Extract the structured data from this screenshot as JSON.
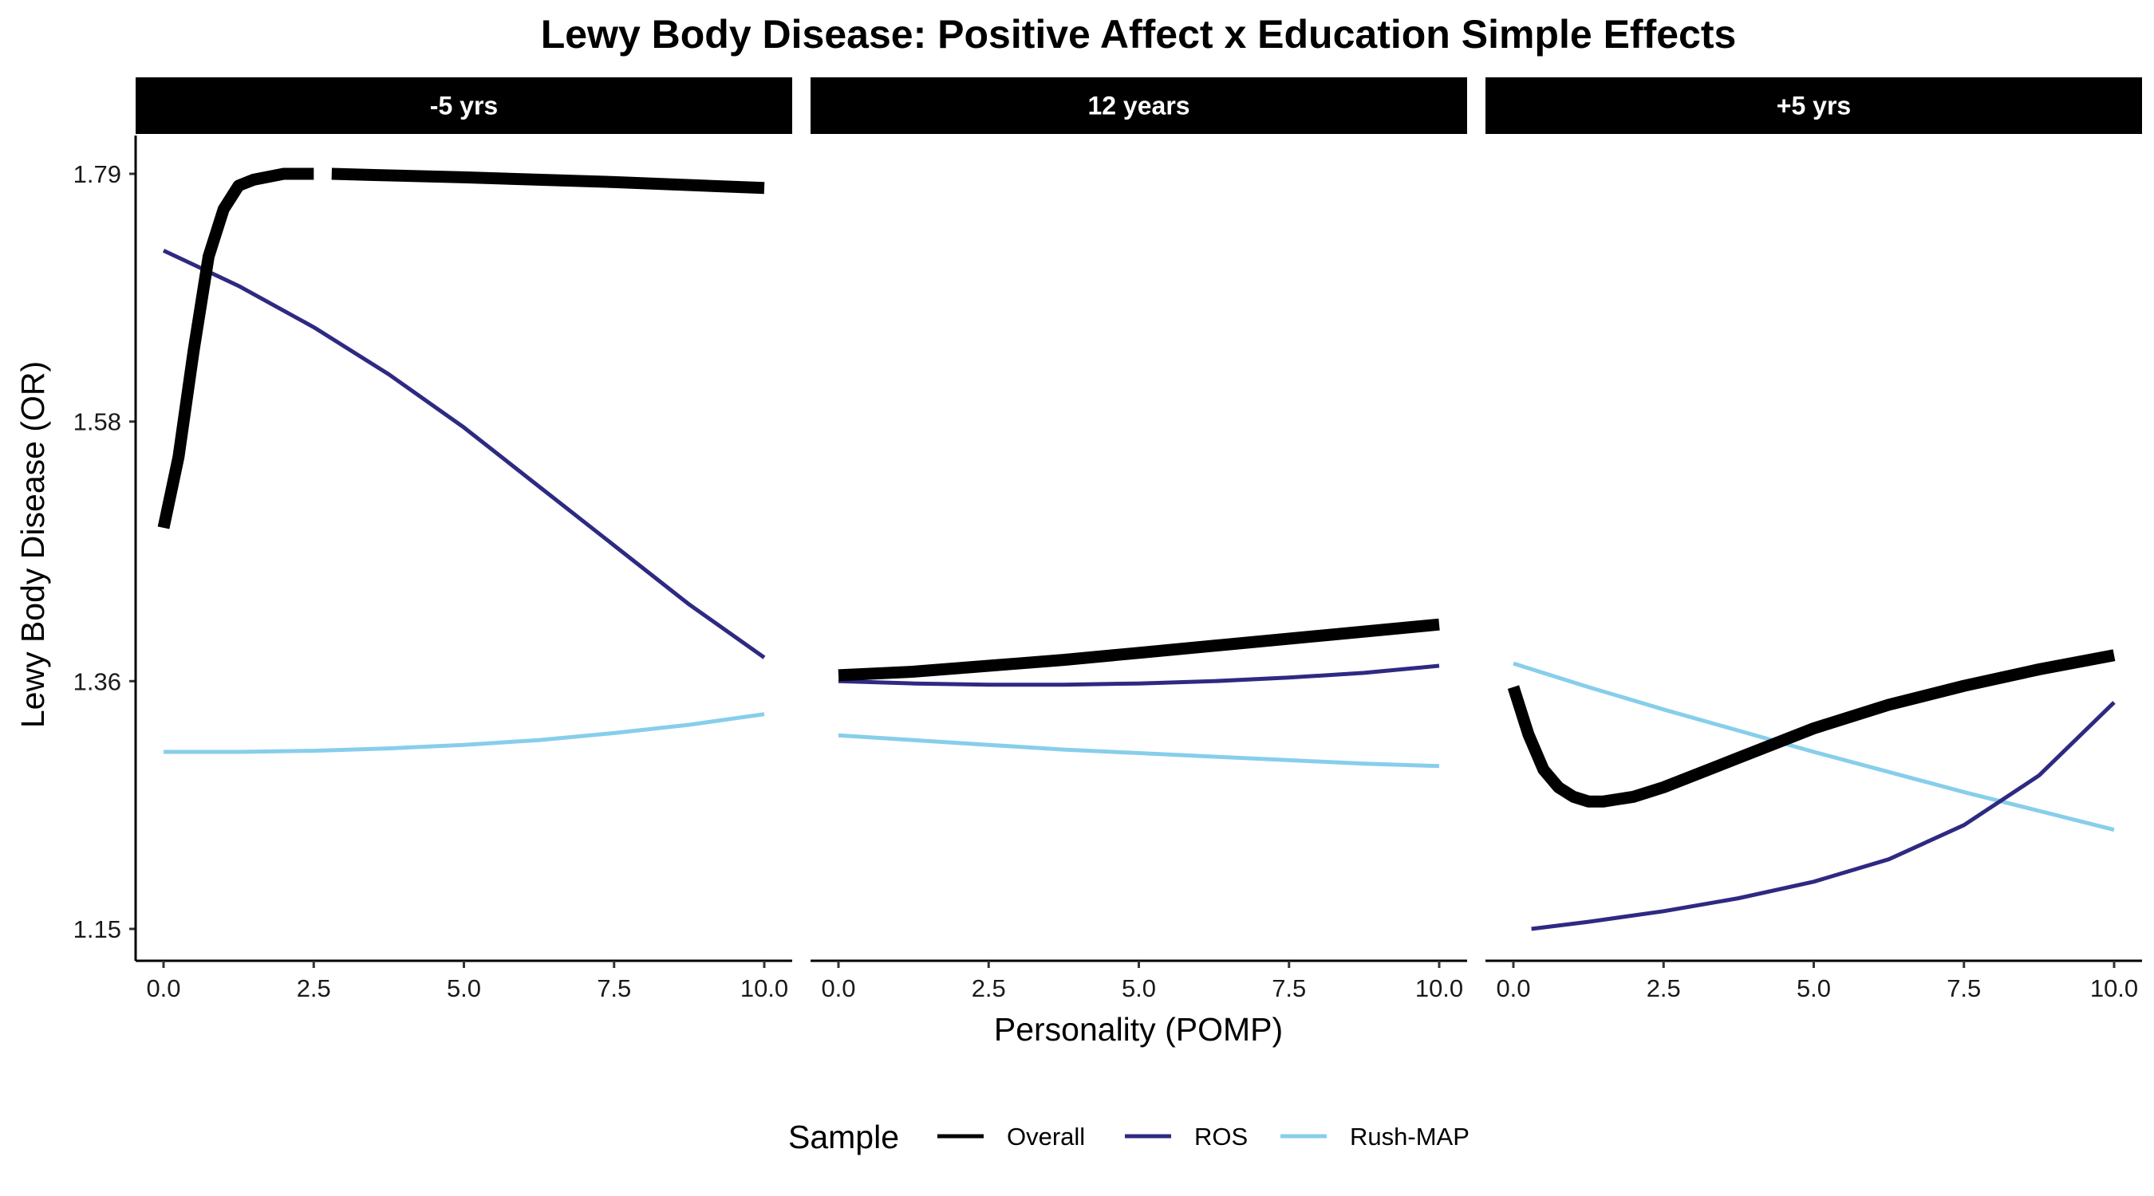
{
  "chart_data": {
    "type": "line",
    "title": "Lewy Body Disease: Positive Affect x Education Simple Effects",
    "xlabel": "Personality (POMP)",
    "ylabel": "Lewy Body Disease (OR)",
    "xlim": [
      0,
      10
    ],
    "ylim": [
      1.15,
      1.79
    ],
    "x_ticks": [
      "0.0",
      "2.5",
      "5.0",
      "7.5",
      "10.0"
    ],
    "y_ticks": [
      "1.15",
      "1.36",
      "1.58",
      "1.79"
    ],
    "legend": {
      "title": "Sample",
      "position": "bottom",
      "entries": [
        {
          "name": "Overall",
          "color": "#000000"
        },
        {
          "name": "ROS",
          "color": "#2e2a82"
        },
        {
          "name": "Rush-MAP",
          "color": "#87ceeb"
        }
      ]
    },
    "panels": [
      {
        "label": "-5 yrs",
        "series": [
          {
            "name": "Overall",
            "x": [
              0,
              0.25,
              0.5,
              0.75,
              1,
              1.25,
              1.5,
              2,
              2.5,
              2.8,
              3.5,
              5,
              7.5,
              10
            ],
            "y": [
              1.49,
              1.55,
              1.64,
              1.72,
              1.76,
              1.78,
              1.785,
              1.79,
              1.79,
              1.79,
              1.789,
              1.787,
              1.783,
              1.778
            ],
            "segments": [
              [
                0,
                8
              ],
              [
                9,
                13
              ]
            ]
          },
          {
            "name": "ROS",
            "x": [
              0,
              1.25,
              2.5,
              3.75,
              5,
              6.25,
              7.5,
              8.75,
              10
            ],
            "y": [
              1.725,
              1.695,
              1.66,
              1.62,
              1.575,
              1.525,
              1.475,
              1.425,
              1.38
            ]
          },
          {
            "name": "Rush-MAP",
            "x": [
              0,
              1.25,
              2.5,
              3.75,
              5,
              6.25,
              7.5,
              8.75,
              10
            ],
            "y": [
              1.3,
              1.3,
              1.301,
              1.303,
              1.306,
              1.31,
              1.316,
              1.323,
              1.332
            ]
          }
        ]
      },
      {
        "label": "12 years",
        "series": [
          {
            "name": "Overall",
            "x": [
              0,
              1.25,
              2.5,
              3.75,
              5,
              6.25,
              7.5,
              8.75,
              10
            ],
            "y": [
              1.365,
              1.368,
              1.373,
              1.378,
              1.384,
              1.39,
              1.396,
              1.402,
              1.408
            ]
          },
          {
            "name": "ROS",
            "x": [
              0,
              1.25,
              2.5,
              3.75,
              5,
              6.25,
              7.5,
              8.75,
              10
            ],
            "y": [
              1.36,
              1.358,
              1.357,
              1.357,
              1.358,
              1.36,
              1.363,
              1.367,
              1.373
            ]
          },
          {
            "name": "Rush-MAP",
            "x": [
              0,
              1.25,
              2.5,
              3.75,
              5,
              6.25,
              7.5,
              8.75,
              10
            ],
            "y": [
              1.314,
              1.31,
              1.306,
              1.302,
              1.299,
              1.296,
              1.293,
              1.29,
              1.288
            ]
          }
        ]
      },
      {
        "label": "+5 yrs",
        "series": [
          {
            "name": "Overall",
            "x": [
              0,
              0.25,
              0.5,
              0.75,
              1,
              1.25,
              1.5,
              2,
              2.5,
              3.75,
              5,
              6.25,
              7.5,
              8.75,
              10
            ],
            "y": [
              1.355,
              1.315,
              1.285,
              1.27,
              1.262,
              1.258,
              1.258,
              1.262,
              1.27,
              1.295,
              1.32,
              1.34,
              1.356,
              1.37,
              1.382
            ]
          },
          {
            "name": "ROS",
            "x": [
              0.3,
              1.25,
              2.5,
              3.75,
              5,
              6.25,
              7.5,
              8.75,
              10
            ],
            "y": [
              1.15,
              1.156,
              1.165,
              1.176,
              1.19,
              1.209,
              1.238,
              1.28,
              1.342
            ]
          },
          {
            "name": "Rush-MAP",
            "x": [
              0,
              1.25,
              2.5,
              3.75,
              5,
              6.25,
              7.5,
              8.75,
              10
            ],
            "y": [
              1.375,
              1.355,
              1.336,
              1.318,
              1.3,
              1.283,
              1.266,
              1.25,
              1.234
            ]
          }
        ]
      }
    ]
  }
}
